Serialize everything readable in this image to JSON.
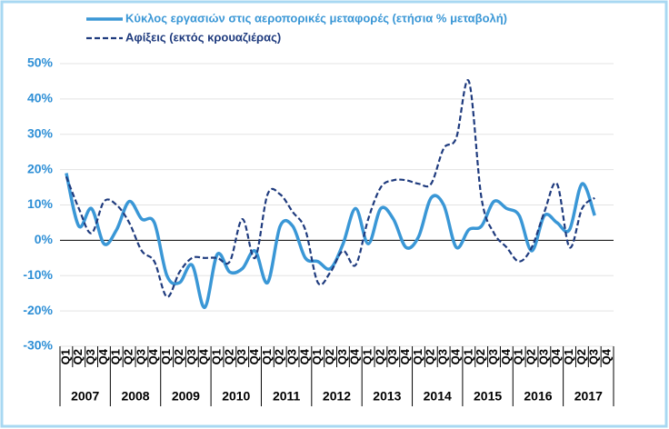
{
  "chart_data": {
    "type": "line",
    "categories": [
      "Q1",
      "Q2",
      "Q3",
      "Q4",
      "Q1",
      "Q2",
      "Q3",
      "Q4",
      "Q1",
      "Q2",
      "Q3",
      "Q4",
      "Q1",
      "Q2",
      "Q3",
      "Q4",
      "Q1",
      "Q2",
      "Q3",
      "Q4",
      "Q1",
      "Q2",
      "Q3",
      "Q4",
      "Q1",
      "Q2",
      "Q3",
      "Q4",
      "Q1",
      "Q2",
      "Q3",
      "Q4",
      "Q1",
      "Q2",
      "Q3",
      "Q4",
      "Q1",
      "Q2",
      "Q3",
      "Q4",
      "Q1",
      "Q2",
      "Q3",
      "Q4"
    ],
    "groups": [
      "2007",
      "2008",
      "2009",
      "2010",
      "2011",
      "2012",
      "2013",
      "2014",
      "2015",
      "2016",
      "2017"
    ],
    "series": [
      {
        "name": "Κύκλος εργασιών στις αεροπορικές μεταφορές (ετήσια % μεταβολή)",
        "color": "#3a97d6",
        "dashed": false,
        "values": [
          19,
          4,
          9,
          -1,
          3,
          11,
          6,
          5,
          -10,
          -12,
          -7,
          -19,
          -4,
          -9,
          -8,
          -3,
          -12,
          4,
          4,
          -5,
          -6,
          -8,
          -1,
          9,
          -1,
          9,
          6,
          -2,
          1,
          12,
          10,
          -2,
          3,
          4,
          11,
          9,
          7,
          -3,
          7,
          5,
          3,
          16,
          7,
          null
        ]
      },
      {
        "name": "Αφίξεις (εκτός κρουαζιέρας)",
        "color": "#1f3b7e",
        "dashed": true,
        "values": [
          18,
          9,
          2,
          11,
          10,
          5,
          -3,
          -6,
          -16,
          -9,
          -5,
          -5,
          -5,
          -6,
          6,
          -5,
          13,
          13,
          8,
          3,
          -12,
          -9,
          -3,
          -7,
          6,
          15,
          17,
          17,
          16,
          16,
          26,
          29,
          45,
          12,
          2,
          -2,
          -6,
          -2,
          8,
          16,
          -2,
          9,
          12,
          null
        ]
      }
    ],
    "ylim": [
      -30,
      50
    ],
    "yticks": [
      {
        "value": -30,
        "label": "-30%"
      },
      {
        "value": -20,
        "label": "-20%"
      },
      {
        "value": -10,
        "label": "-10%"
      },
      {
        "value": 0,
        "label": "0%"
      },
      {
        "value": 10,
        "label": "10%"
      },
      {
        "value": 20,
        "label": "20%"
      },
      {
        "value": 30,
        "label": "30%"
      },
      {
        "value": 40,
        "label": "40%"
      },
      {
        "value": 50,
        "label": "50%"
      }
    ],
    "grid": true
  }
}
